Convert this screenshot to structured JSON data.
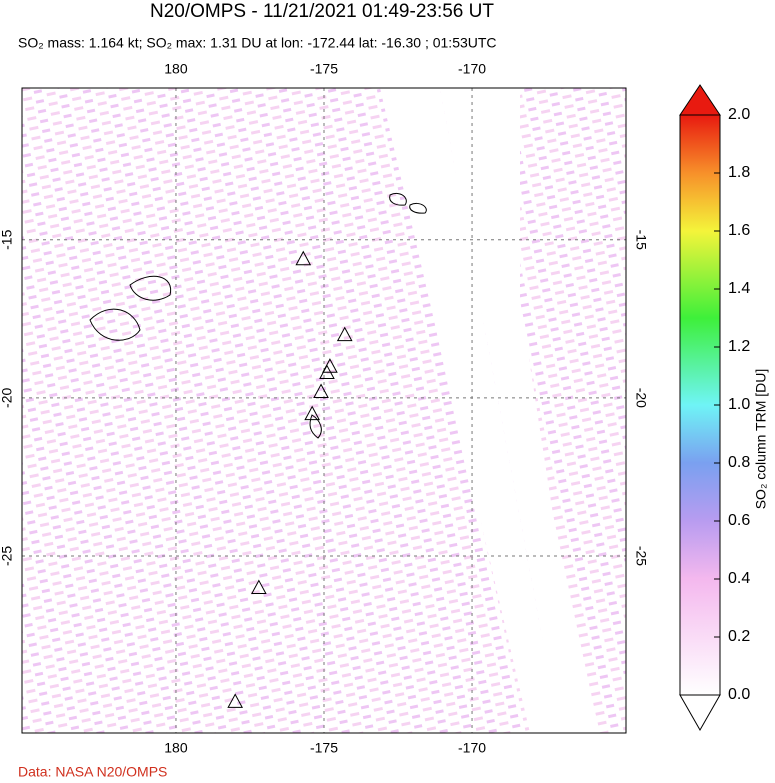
{
  "chart_data": {
    "type": "map",
    "title": "N20/OMPS - 11/21/2021 01:49-23:56 UT",
    "subtitle": "SO₂ mass: 1.164 kt; SO₂ max: 1.31 DU at lon: -172.44 lat: -16.30 ; 01:53UTC",
    "credit": "Data: NASA N20/OMPS",
    "xlim": [
      174.8,
      195.2
    ],
    "xticks": [
      {
        "value": 180,
        "label": "180"
      },
      {
        "value": 185,
        "label": "-175"
      },
      {
        "value": 190,
        "label": "-170"
      }
    ],
    "ylim": [
      -30.6,
      -10.2
    ],
    "yticks": [
      -15,
      -20,
      -25
    ],
    "grid": true,
    "volcanoes": [
      {
        "lon": 184.3,
        "lat": -15.6
      },
      {
        "lon": 185.7,
        "lat": -18.0
      },
      {
        "lon": 185.2,
        "lat": -19.0
      },
      {
        "lon": 185.1,
        "lat": -19.2
      },
      {
        "lon": 184.9,
        "lat": -19.8
      },
      {
        "lon": 184.6,
        "lat": -20.5
      },
      {
        "lon": 182.8,
        "lat": -26.0
      },
      {
        "lon": 182.0,
        "lat": -29.6
      }
    ],
    "colorbar": {
      "label": "SO₂ column TRM [DU]",
      "lim": [
        0,
        2
      ],
      "ticks": [
        {
          "value": 0,
          "label": "0.0"
        },
        {
          "value": 0.2,
          "label": "0.2"
        },
        {
          "value": 0.4,
          "label": "0.4"
        },
        {
          "value": 0.6,
          "label": "0.6"
        },
        {
          "value": 0.8,
          "label": "0.8"
        },
        {
          "value": 1,
          "label": "1.0"
        },
        {
          "value": 1.2,
          "label": "1.2"
        },
        {
          "value": 1.4,
          "label": "1.4"
        },
        {
          "value": 1.6,
          "label": "1.6"
        },
        {
          "value": 1.8,
          "label": "1.8"
        },
        {
          "value": 2,
          "label": "2.0"
        }
      ],
      "colorscale": [
        [
          0,
          "#ffffff"
        ],
        [
          0.4,
          "#f4b8ee"
        ],
        [
          0.6,
          "#b89cf0"
        ],
        [
          0.8,
          "#7aa0f0"
        ],
        [
          1,
          "#6ff4f6"
        ],
        [
          1.3,
          "#3ef03a"
        ],
        [
          1.6,
          "#f4f43a"
        ],
        [
          1.8,
          "#f7902a"
        ],
        [
          2,
          "#e81a10"
        ]
      ]
    }
  }
}
